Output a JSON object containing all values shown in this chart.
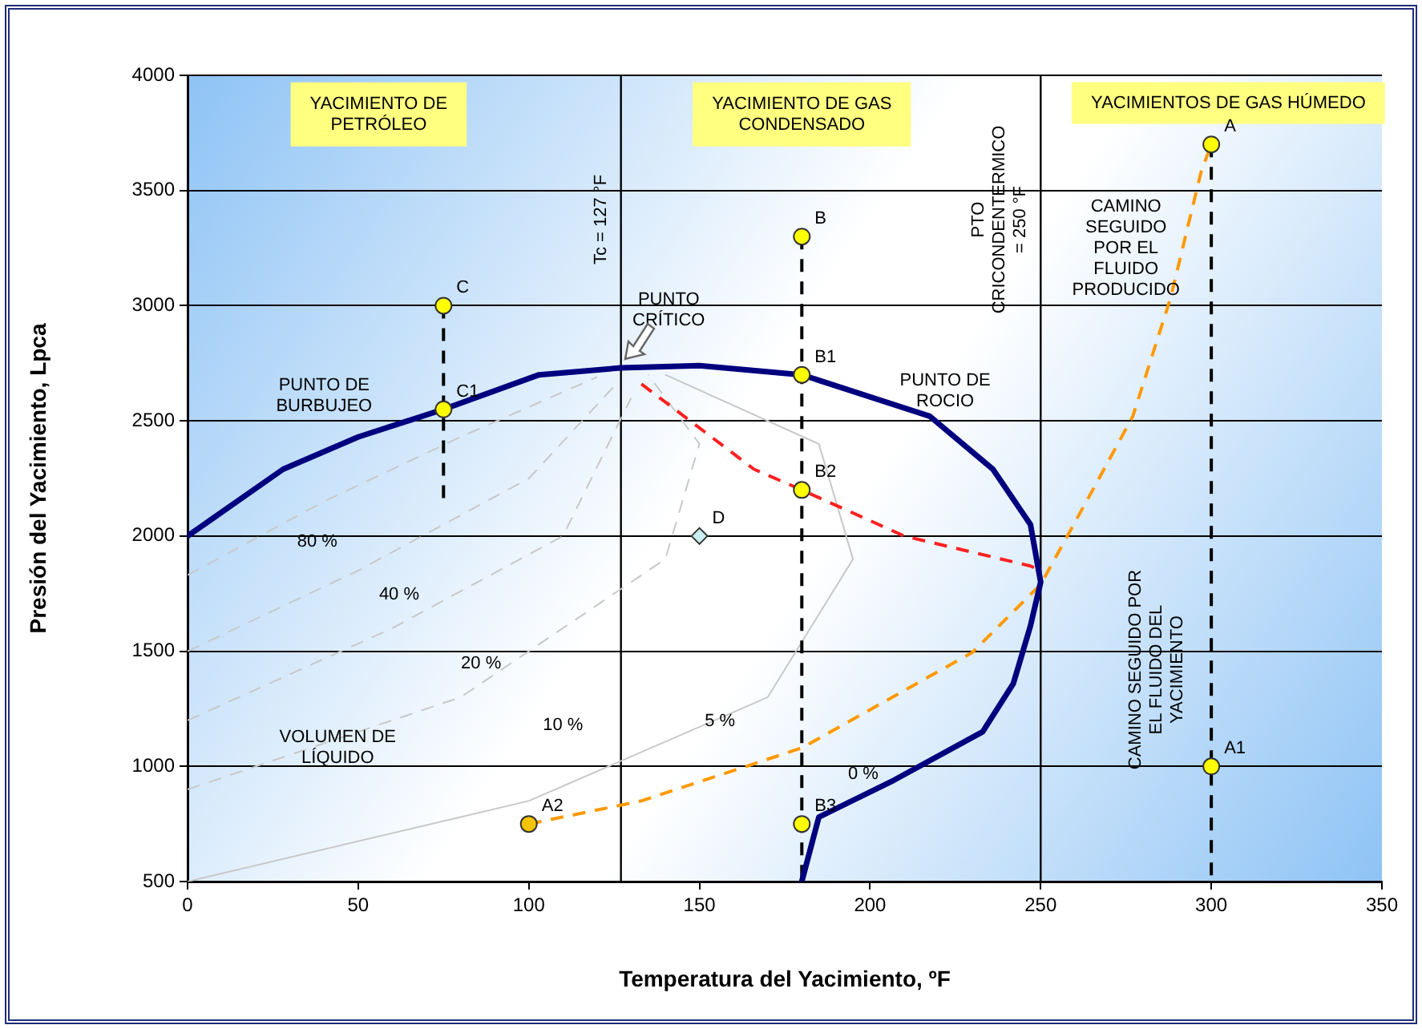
{
  "chart_data": {
    "type": "line",
    "xlabel": "Temperatura del Yacimiento, ºF",
    "ylabel": "Presión del Yacimiento, Lpca",
    "xlim": [
      0,
      350
    ],
    "xticks": [
      0,
      50,
      100,
      150,
      200,
      250,
      300,
      350
    ],
    "ylim": [
      500,
      4000
    ],
    "yticks": [
      500,
      1000,
      1500,
      2000,
      2500,
      3000,
      3500,
      4000
    ],
    "grid": "y",
    "legend": false,
    "ref_lines": [
      {
        "axis": "x",
        "value": 127,
        "label": "Tc = 127 °F",
        "color": "#000000"
      },
      {
        "axis": "x",
        "value": 250,
        "label": "PTO CRICONDENTERMICO = 250 °F",
        "color": "#000000"
      }
    ],
    "series": [
      {
        "type": "line",
        "color": "#00007f",
        "marker": "none",
        "line_style": "solid",
        "x": [
          0,
          28,
          50,
          75,
          103,
          127,
          150,
          180,
          217.5,
          236,
          247,
          250,
          247,
          242,
          233,
          207,
          185,
          180
        ],
        "values": [
          2000,
          2290,
          2430,
          2550,
          2700,
          2730,
          2740,
          2700,
          2520,
          2290,
          2050,
          1800,
          1610,
          1360,
          1150,
          940,
          780,
          500
        ]
      },
      {
        "type": "line",
        "color": "#ff2020",
        "marker": "none",
        "line_style": "dashed",
        "x": [
          133,
          166,
          180,
          210,
          247,
          250
        ],
        "values": [
          2660,
          2290,
          2200,
          2000,
          1870,
          1850
        ]
      },
      {
        "type": "line",
        "color": "#ff9900",
        "marker": "none",
        "line_style": "dashed",
        "x": [
          100,
          133,
          180,
          230,
          250,
          266,
          277,
          288,
          297,
          300
        ],
        "values": [
          750,
          850,
          1080,
          1495,
          1790,
          2220,
          2520,
          3030,
          3580,
          3700
        ]
      },
      {
        "type": "line",
        "color": "#000000",
        "marker": "none",
        "line_style": "dashed",
        "x": [
          75,
          75
        ],
        "values": [
          3000,
          2150
        ]
      },
      {
        "type": "line",
        "color": "#000000",
        "marker": "none",
        "line_style": "dashed",
        "x": [
          180,
          180
        ],
        "values": [
          3300,
          500
        ]
      },
      {
        "type": "line",
        "color": "#000000",
        "marker": "none",
        "line_style": "dashed",
        "x": [
          300,
          300
        ],
        "values": [
          3700,
          500
        ]
      },
      {
        "type": "line",
        "color": "#c8c8c8",
        "marker": "none",
        "line_style": "dashed",
        "x": [
          0,
          40,
          80,
          120
        ],
        "values": [
          1830,
          2150,
          2430,
          2690
        ]
      },
      {
        "type": "line",
        "color": "#c8c8c8",
        "marker": "none",
        "line_style": "dashed",
        "x": [
          0,
          50,
          100,
          125
        ],
        "values": [
          1500,
          1850,
          2250,
          2650
        ]
      },
      {
        "type": "line",
        "color": "#c8c8c8",
        "marker": "none",
        "line_style": "dashed",
        "x": [
          0,
          60,
          110,
          130
        ],
        "values": [
          1200,
          1600,
          2000,
          2600
        ]
      },
      {
        "type": "line",
        "color": "#c8c8c8",
        "marker": "none",
        "line_style": "dashed",
        "x": [
          0,
          80,
          140,
          150,
          135
        ],
        "values": [
          900,
          1300,
          1900,
          2400,
          2700
        ]
      },
      {
        "type": "line",
        "color": "#c8c8c8",
        "marker": "none",
        "line_style": "solid",
        "x": [
          0,
          100,
          170,
          195,
          185,
          140
        ],
        "values": [
          500,
          850,
          1300,
          1900,
          2400,
          2700
        ]
      },
      {
        "type": "scatter",
        "marker": "circle",
        "x": [
          75,
          75,
          180,
          180,
          180,
          180,
          300,
          300,
          100
        ],
        "values": [
          3000,
          2550,
          3300,
          2700,
          2200,
          750,
          3700,
          1000,
          750
        ],
        "colors": [
          "#ffff00",
          "#ffff00",
          "#ffff00",
          "#ffff00",
          "#ffff00",
          "#ffff00",
          "#ffff00",
          "#ffff00",
          "#f5c400"
        ]
      },
      {
        "type": "scatter",
        "marker": "diamond",
        "color": "#c8f0f0",
        "x": [
          150
        ],
        "values": [
          2000
        ]
      }
    ],
    "annotations": [
      "YACIMIENTO DE PETRÓLEO",
      "YACIMIENTO DE GAS CONDENSADO",
      "YACIMIENTOS DE GAS HÚMEDO",
      "PUNTO CRÍTICO",
      "PUNTO DE BURBUJEO",
      "PUNTO DE ROCIO",
      "CAMINO SEGUIDO POR EL FLUIDO PRODUCIDO",
      "CAMINO SEGUIDO POR EL FLUIDO DEL YACIMIENTO",
      "VOLUMEN DE LÍQUIDO",
      {
        "text": "C",
        "x": 75,
        "y": 3000
      },
      {
        "text": "C1",
        "x": 75,
        "y": 2550
      },
      {
        "text": "B",
        "x": 180,
        "y": 3300
      },
      {
        "text": "B1",
        "x": 180,
        "y": 2700
      },
      {
        "text": "B2",
        "x": 180,
        "y": 2200
      },
      {
        "text": "B3",
        "x": 180,
        "y": 750
      },
      {
        "text": "A",
        "x": 300,
        "y": 3700
      },
      {
        "text": "A1",
        "x": 300,
        "y": 1000
      },
      {
        "text": "A2",
        "x": 100,
        "y": 750
      },
      {
        "text": "D",
        "x": 150,
        "y": 2000
      },
      "80 %",
      "40 %",
      "20 %",
      "10 %",
      "5 %",
      "0 %"
    ]
  }
}
